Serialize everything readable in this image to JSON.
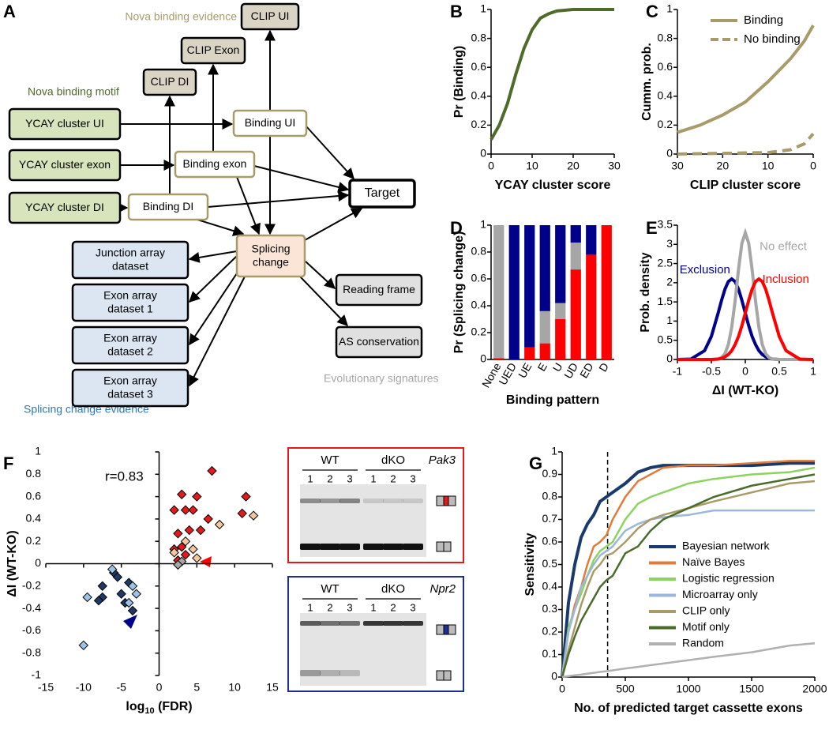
{
  "panel_labels": [
    "A",
    "B",
    "C",
    "D",
    "E",
    "F",
    "G"
  ],
  "diagram": {
    "group_labels": {
      "binding_evidence": "Nova binding evidence",
      "binding_motif": "Nova  binding motif",
      "evolutionary": "Evolutionary signatures",
      "splicing_evidence": "Splicing change evidence"
    },
    "nodes": [
      {
        "lines": [
          "CLIP UI"
        ]
      },
      {
        "lines": [
          "CLIP Exon"
        ]
      },
      {
        "lines": [
          "CLIP DI"
        ]
      },
      {
        "lines": [
          "YCAY cluster UI"
        ]
      },
      {
        "lines": [
          "YCAY cluster exon"
        ]
      },
      {
        "lines": [
          "YCAY cluster DI"
        ]
      },
      {
        "lines": [
          "Binding UI"
        ]
      },
      {
        "lines": [
          "Binding exon"
        ]
      },
      {
        "lines": [
          "Binding DI"
        ]
      },
      {
        "lines": [
          "Target"
        ]
      },
      {
        "lines": [
          "Splicing",
          "change"
        ]
      },
      {
        "lines": [
          "Junction array",
          "dataset"
        ]
      },
      {
        "lines": [
          "Exon array",
          "dataset 1"
        ]
      },
      {
        "lines": [
          "Exon array",
          "dataset 2"
        ]
      },
      {
        "lines": [
          "Exon array",
          "dataset 3"
        ]
      },
      {
        "lines": [
          "Reading frame"
        ]
      },
      {
        "lines": [
          "AS conservation"
        ]
      }
    ]
  },
  "gels": [
    {
      "gene": "Pak3",
      "groups": [
        "WT",
        "dKO"
      ],
      "lanes": [
        "1",
        "2",
        "3",
        "1",
        "2",
        "3"
      ],
      "color": "#e31a1c"
    },
    {
      "gene": "Npr2",
      "groups": [
        "WT",
        "dKO"
      ],
      "lanes": [
        "1",
        "2",
        "3",
        "1",
        "2",
        "3"
      ],
      "color": "#1f2f8f"
    }
  ],
  "chart_data": [
    {
      "type": "line",
      "x_label": "YCAY cluster score",
      "y_label": "Pr (Binding)",
      "x": [
        0,
        2,
        4,
        6,
        8,
        10,
        12,
        14,
        16,
        20,
        25,
        30
      ],
      "series": [
        {
          "color": "#4e6b2a",
          "values": [
            0.1,
            0.2,
            0.35,
            0.55,
            0.73,
            0.86,
            0.94,
            0.97,
            0.99,
            1,
            1,
            1
          ]
        }
      ],
      "xlim": [
        0,
        30
      ],
      "ylim": [
        0,
        1
      ],
      "xticks": [
        0,
        10,
        20,
        30
      ],
      "yticks": [
        0,
        0.2,
        0.4,
        0.6,
        0.8,
        1
      ]
    },
    {
      "type": "line",
      "x_label": "CLIP cluster score",
      "y_label": "Cumm. prob.",
      "x": [
        30,
        25,
        20,
        15,
        10,
        5,
        2,
        0
      ],
      "series": [
        {
          "name": "Binding",
          "color": "#a89b6a",
          "dash": false,
          "values": [
            0.15,
            0.2,
            0.27,
            0.36,
            0.5,
            0.66,
            0.78,
            0.89
          ]
        },
        {
          "name": "No binding",
          "color": "#a89b6a",
          "dash": true,
          "values": [
            0,
            0.003,
            0.005,
            0.008,
            0.01,
            0.03,
            0.07,
            0.14
          ]
        }
      ],
      "xlim": [
        30,
        0
      ],
      "ylim": [
        0,
        1
      ],
      "xticks": [
        30,
        20,
        10,
        0
      ],
      "yticks": [
        0,
        0.2,
        0.4,
        0.6,
        0.8,
        1
      ],
      "legend": "upper right"
    },
    {
      "type": "stacked_bar",
      "x_label": "Binding pattern",
      "y_label": "Pr (Splicing change)",
      "categories": [
        "None",
        "UED",
        "UE",
        "E",
        "U",
        "UD",
        "ED",
        "D"
      ],
      "series": [
        {
          "color": "#ff0000",
          "values": [
            0.01,
            0,
            0.09,
            0.12,
            0.3,
            0.67,
            0.78,
            1
          ]
        },
        {
          "color": "#a6a6a6",
          "values": [
            0.99,
            0,
            0,
            0.24,
            0.12,
            0.2,
            0,
            0
          ]
        },
        {
          "color": "#00008b",
          "values": [
            0,
            1,
            0.91,
            0.64,
            0.58,
            0.13,
            0.22,
            0
          ]
        }
      ],
      "ylim": [
        0,
        1
      ],
      "yticks": [
        0,
        0.2,
        0.4,
        0.6,
        0.8,
        1
      ]
    },
    {
      "type": "line",
      "x_label": "ΔI (WT-KO)",
      "y_label": "Prob. density",
      "x": [
        -1,
        -0.8,
        -0.6,
        -0.5,
        -0.4,
        -0.35,
        -0.3,
        -0.25,
        -0.2,
        -0.15,
        -0.1,
        -0.05,
        0,
        0.05,
        0.1,
        0.15,
        0.2,
        0.25,
        0.3,
        0.35,
        0.4,
        0.5,
        0.6,
        0.8,
        1
      ],
      "series": [
        {
          "name": "Exclusion",
          "color": "#00008b",
          "values": [
            0,
            0.01,
            0.23,
            0.6,
            1.21,
            1.54,
            1.83,
            2.03,
            2.1,
            2.03,
            1.83,
            1.54,
            1.21,
            0.88,
            0.6,
            0.39,
            0.23,
            0.13,
            0.07,
            0.03,
            0.01,
            0,
            0,
            0,
            0
          ]
        },
        {
          "name": "No effect",
          "color": "#a6a6a6",
          "values": [
            0,
            0,
            0,
            0,
            0.01,
            0.05,
            0.15,
            0.39,
            0.84,
            1.53,
            2.35,
            3.03,
            3.3,
            3.03,
            2.35,
            1.53,
            0.84,
            0.39,
            0.15,
            0.05,
            0.01,
            0,
            0,
            0,
            0
          ]
        },
        {
          "name": "Inclusion",
          "color": "#ff0000",
          "values": [
            0,
            0,
            0,
            0,
            0.01,
            0.03,
            0.07,
            0.13,
            0.23,
            0.39,
            0.6,
            0.88,
            1.21,
            1.54,
            1.83,
            2.03,
            2.1,
            2.03,
            1.83,
            1.54,
            1.21,
            0.6,
            0.23,
            0.01,
            0
          ]
        }
      ],
      "xlim": [
        -1,
        1
      ],
      "ylim": [
        0,
        3.5
      ],
      "xticks": [
        -1,
        -0.5,
        0,
        0.5,
        1
      ],
      "yticks": [
        0,
        0.5,
        1,
        1.5,
        2,
        2.5,
        3,
        3.5
      ]
    },
    {
      "type": "scatter",
      "x_label": [
        "log",
        "10",
        " (FDR)"
      ],
      "y_label": "ΔI (WT-KO)",
      "annotation": "r=0.83",
      "axes_at_zero": true,
      "series": [
        {
          "color": "#e31a1c",
          "x": [
            7,
            3,
            5,
            11.5,
            2,
            3.5,
            4.5,
            6.5,
            11,
            2.5,
            4,
            5.5,
            3,
            2,
            3.5,
            2.5
          ],
          "values": [
            0.83,
            0.62,
            0.6,
            0.6,
            0.48,
            0.48,
            0.48,
            0.4,
            0.45,
            0.27,
            0.3,
            0.3,
            0.15,
            0.13,
            0.08,
            0.03
          ]
        },
        {
          "color": "#f4c7a1",
          "x": [
            12.5,
            8,
            3.5,
            4.5,
            2,
            5
          ],
          "values": [
            0.43,
            0.35,
            0.2,
            0.13,
            0.1,
            0.05
          ]
        },
        {
          "color": "#a6a6a6",
          "x": [
            3,
            2.5
          ],
          "values": [
            0.02,
            -0.01
          ]
        },
        {
          "color": "#1f3864",
          "x": [
            -6,
            -5.5,
            -7.5,
            -4,
            -5,
            -7.5,
            -8,
            -4.5,
            -3.5
          ],
          "values": [
            -0.08,
            -0.12,
            -0.2,
            -0.17,
            -0.27,
            -0.3,
            -0.33,
            -0.35,
            -0.42
          ]
        },
        {
          "color": "#9dc3e6",
          "x": [
            -6.2,
            -3.5,
            -3,
            -9.5,
            -4,
            -10
          ],
          "values": [
            -0.05,
            -0.2,
            -0.27,
            -0.3,
            -0.35,
            -0.73
          ]
        }
      ],
      "xlim": [
        -15,
        15
      ],
      "ylim": [
        -1,
        1
      ],
      "xticks": [
        -15,
        -10,
        -5,
        0,
        5,
        10,
        15
      ],
      "yticks": [
        -1,
        -0.8,
        -0.6,
        -0.4,
        -0.2,
        0,
        0.2,
        0.4,
        0.6,
        0.8,
        1
      ]
    },
    {
      "type": "line",
      "x_label": "No. of predicted target cassette exons",
      "y_label": "Sensitivity",
      "vline": 360,
      "x": [
        0,
        50,
        100,
        150,
        200,
        250,
        300,
        350,
        400,
        500,
        600,
        700,
        800,
        1000,
        1200,
        1500,
        1800,
        2000
      ],
      "series": [
        {
          "name": "Bayesian network",
          "color": "#1a3a6e",
          "values": [
            0,
            0.33,
            0.5,
            0.62,
            0.68,
            0.72,
            0.78,
            0.8,
            0.82,
            0.86,
            0.91,
            0.93,
            0.94,
            0.94,
            0.94,
            0.94,
            0.95,
            0.95
          ]
        },
        {
          "name": "Naïve Bayes",
          "color": "#e07b39",
          "values": [
            0,
            0.2,
            0.32,
            0.4,
            0.5,
            0.58,
            0.6,
            0.63,
            0.7,
            0.8,
            0.87,
            0.9,
            0.93,
            0.94,
            0.94,
            0.95,
            0.96,
            0.96
          ]
        },
        {
          "name": "Logistic regression",
          "color": "#8dd35f",
          "values": [
            0,
            0.22,
            0.3,
            0.37,
            0.45,
            0.52,
            0.56,
            0.58,
            0.6,
            0.7,
            0.77,
            0.8,
            0.82,
            0.86,
            0.88,
            0.9,
            0.91,
            0.93
          ]
        },
        {
          "name": "Microarray only",
          "color": "#9db6dc",
          "values": [
            0,
            0.2,
            0.3,
            0.4,
            0.45,
            0.5,
            0.54,
            0.56,
            0.58,
            0.65,
            0.68,
            0.7,
            0.71,
            0.72,
            0.74,
            0.74,
            0.74,
            0.74
          ]
        },
        {
          "name": "CLIP only",
          "color": "#a89b6a",
          "values": [
            0,
            0.12,
            0.22,
            0.32,
            0.4,
            0.47,
            0.5,
            0.54,
            0.55,
            0.6,
            0.66,
            0.7,
            0.72,
            0.75,
            0.78,
            0.82,
            0.86,
            0.87
          ]
        },
        {
          "name": "Motif only",
          "color": "#4a6b2a",
          "values": [
            0,
            0.1,
            0.18,
            0.25,
            0.3,
            0.35,
            0.4,
            0.43,
            0.45,
            0.55,
            0.58,
            0.65,
            0.7,
            0.75,
            0.8,
            0.85,
            0.88,
            0.9
          ]
        },
        {
          "name": "Random",
          "color": "#b0b0b0",
          "values": [
            0,
            0.004,
            0.008,
            0.011,
            0.015,
            0.019,
            0.023,
            0.026,
            0.03,
            0.038,
            0.045,
            0.053,
            0.06,
            0.075,
            0.09,
            0.11,
            0.14,
            0.15
          ]
        }
      ],
      "xlim": [
        0,
        2000
      ],
      "ylim": [
        0,
        1
      ],
      "xticks": [
        0,
        500,
        1000,
        1500,
        2000
      ],
      "yticks": [
        0,
        0.1,
        0.2,
        0.3,
        0.4,
        0.5,
        0.6,
        0.7,
        0.8,
        0.9,
        1
      ],
      "legend": "right"
    }
  ]
}
